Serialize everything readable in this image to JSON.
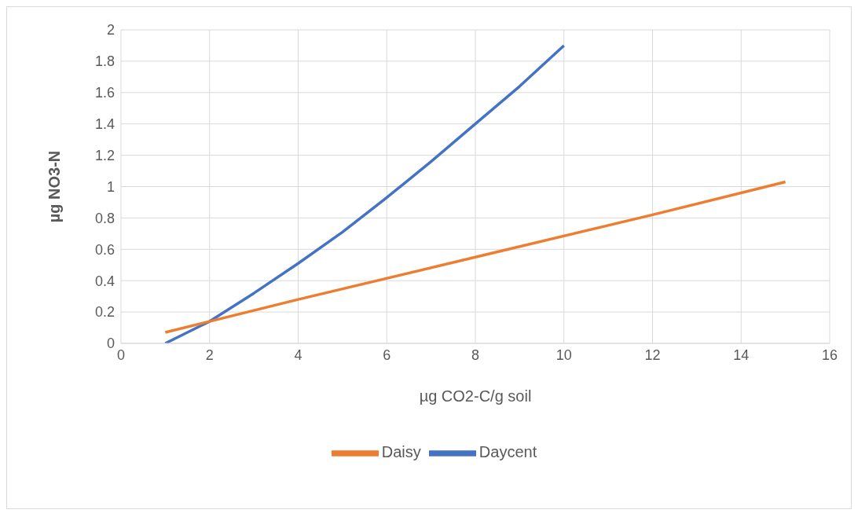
{
  "chart_data": {
    "type": "line",
    "xlabel": "µg CO2-C/g soil",
    "ylabel": "µg NO3-N",
    "xlim": [
      0,
      16
    ],
    "xticks": [
      0,
      2,
      4,
      6,
      8,
      10,
      12,
      14,
      16
    ],
    "ylim": [
      0,
      2
    ],
    "yticks": [
      0,
      0.2,
      0.4,
      0.6,
      0.8,
      1,
      1.2,
      1.4,
      1.6,
      1.8,
      2
    ],
    "grid": true,
    "legend": "bottom",
    "marker": "none",
    "line_style": "solid",
    "series": [
      {
        "name": "Daycent",
        "color": "#4472c4",
        "x": [
          1,
          2,
          3,
          4,
          5,
          6,
          7,
          8,
          9,
          10
        ],
        "values": [
          0,
          0.14,
          0.32,
          0.51,
          0.71,
          0.93,
          1.16,
          1.4,
          1.64,
          1.9
        ]
      },
      {
        "name": "Daisy",
        "color": "#ed7d31",
        "x": [
          1,
          4,
          8,
          12,
          15
        ],
        "values": [
          0.07,
          0.28,
          0.55,
          0.82,
          1.03
        ]
      }
    ]
  }
}
